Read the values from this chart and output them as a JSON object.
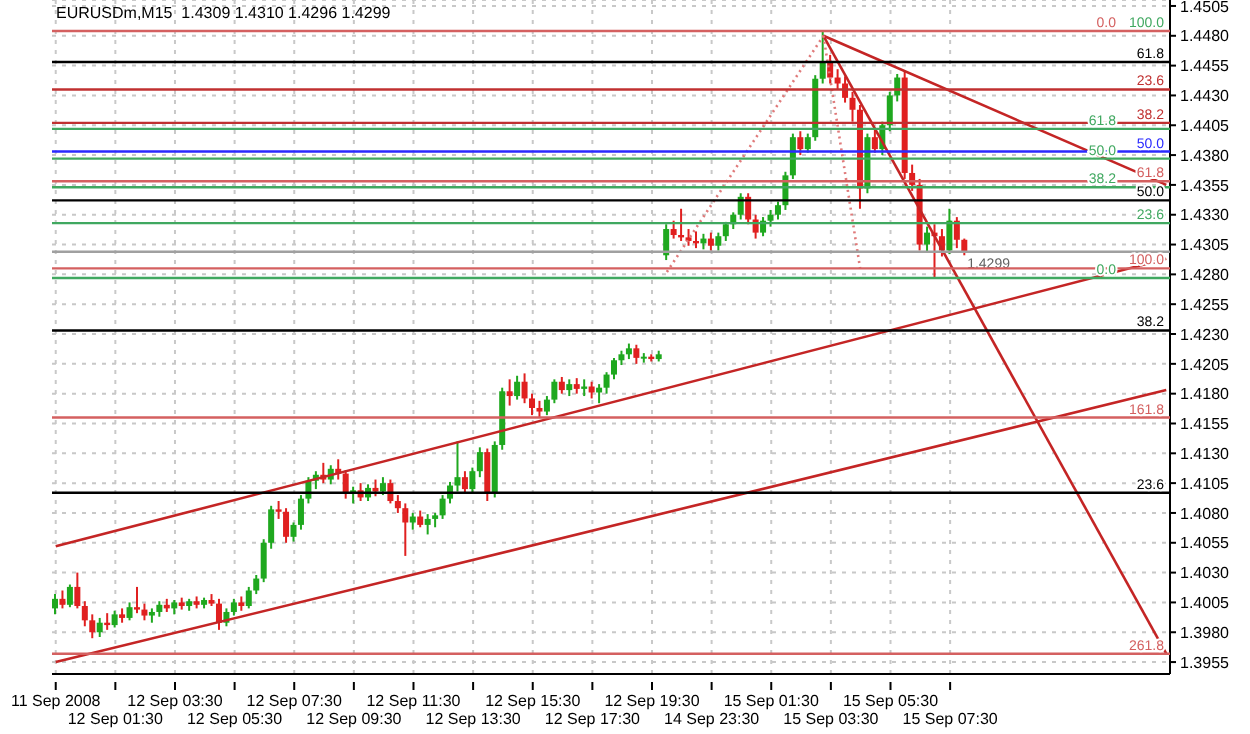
{
  "chart_data": {
    "type": "candlestick",
    "title": "EURUSDm,M15  1.4309 1.4310 1.4296 1.4299",
    "categories": [
      "11 Sep 2008",
      null,
      null,
      null,
      null,
      null,
      null,
      null,
      "12 Sep 01:30",
      null,
      null,
      null,
      null,
      null,
      null,
      null,
      "12 Sep 03:30",
      null,
      null,
      null,
      null,
      null,
      null,
      null,
      "12 Sep 05:30",
      null,
      null,
      null,
      null,
      null,
      null,
      null,
      "12 Sep 07:30",
      null,
      null,
      null,
      null,
      null,
      null,
      null,
      "12 Sep 09:30",
      null,
      null,
      null,
      null,
      null,
      null,
      null,
      "12 Sep 11:30",
      null,
      null,
      null,
      null,
      null,
      null,
      null,
      "12 Sep 13:30",
      null,
      null,
      null,
      null,
      null,
      null,
      null,
      "12 Sep 15:30",
      null,
      null,
      null,
      null,
      null,
      null,
      null,
      "12 Sep 17:30",
      null,
      null,
      null,
      null,
      null,
      null,
      null,
      "12 Sep 19:30",
      null,
      null,
      null,
      null,
      null,
      null,
      null,
      "14 Sep 23:30",
      null,
      null,
      null,
      null,
      null,
      null,
      null,
      "15 Sep 01:30",
      null,
      null,
      null,
      null,
      null,
      null,
      null,
      "15 Sep 03:30",
      null,
      null,
      null,
      null,
      null,
      null,
      null,
      "15 Sep 05:30",
      null,
      null,
      null,
      null,
      null,
      null,
      null,
      "15 Sep 07:30",
      null,
      null,
      null,
      null,
      null,
      null,
      null,
      null,
      null,
      null,
      null,
      null,
      null,
      null,
      null,
      null,
      null,
      null,
      null,
      null,
      null,
      null,
      null,
      null,
      null,
      null,
      null,
      null,
      null
    ],
    "ohlc": [
      [
        1.4,
        1.4012,
        1.3995,
        1.4008
      ],
      [
        1.4008,
        1.4015,
        1.4,
        1.4003
      ],
      [
        1.4003,
        1.402,
        1.4001,
        1.4018
      ],
      [
        1.4018,
        1.403,
        1.4,
        1.4002
      ],
      [
        1.4002,
        1.4006,
        1.3985,
        1.399
      ],
      [
        1.399,
        1.3995,
        1.3975,
        1.398
      ],
      [
        1.398,
        1.3992,
        1.3976,
        1.3988
      ],
      [
        1.3988,
        1.3996,
        1.3982,
        1.3986
      ],
      [
        1.3986,
        1.3998,
        1.3984,
        1.3995
      ],
      [
        1.3995,
        1.4,
        1.3988,
        1.3992
      ],
      [
        1.3992,
        1.4005,
        1.399,
        1.4001
      ],
      [
        1.4001,
        1.4018,
        1.3996,
        1.3999
      ],
      [
        1.3999,
        1.4004,
        1.399,
        1.3994
      ],
      [
        1.3994,
        1.4,
        1.3988,
        1.3997
      ],
      [
        1.3997,
        1.4006,
        1.3993,
        1.4003
      ],
      [
        1.4003,
        1.4008,
        1.3997,
        1.4
      ],
      [
        1.4,
        1.4007,
        1.3995,
        1.4005
      ],
      [
        1.4005,
        1.4009,
        1.3999,
        1.4002
      ],
      [
        1.4002,
        1.4008,
        1.3998,
        1.4006
      ],
      [
        1.4006,
        1.401,
        1.4,
        1.4003
      ],
      [
        1.4003,
        1.4009,
        1.4,
        1.4007
      ],
      [
        1.4007,
        1.4012,
        1.4002,
        1.4004
      ],
      [
        1.4004,
        1.4008,
        1.3982,
        1.3988
      ],
      [
        1.3988,
        1.4,
        1.3985,
        1.3997
      ],
      [
        1.3997,
        1.4008,
        1.3994,
        1.4005
      ],
      [
        1.4005,
        1.401,
        1.3998,
        1.4002
      ],
      [
        1.4002,
        1.4018,
        1.4,
        1.4015
      ],
      [
        1.4015,
        1.4028,
        1.4012,
        1.4025
      ],
      [
        1.4025,
        1.4058,
        1.4022,
        1.4055
      ],
      [
        1.4055,
        1.4086,
        1.405,
        1.4083
      ],
      [
        1.4083,
        1.409,
        1.4075,
        1.4081
      ],
      [
        1.4081,
        1.4084,
        1.4055,
        1.406
      ],
      [
        1.406,
        1.4072,
        1.4056,
        1.407
      ],
      [
        1.407,
        1.4095,
        1.4066,
        1.4092
      ],
      [
        1.4092,
        1.411,
        1.4088,
        1.4107
      ],
      [
        1.4107,
        1.4115,
        1.41,
        1.4112
      ],
      [
        1.4112,
        1.4122,
        1.4105,
        1.4108
      ],
      [
        1.4108,
        1.412,
        1.4104,
        1.4117
      ],
      [
        1.4117,
        1.4125,
        1.4108,
        1.4113
      ],
      [
        1.4113,
        1.4116,
        1.4092,
        1.4096
      ],
      [
        1.4096,
        1.4102,
        1.4088,
        1.4099
      ],
      [
        1.4099,
        1.4105,
        1.409,
        1.4093
      ],
      [
        1.4093,
        1.4104,
        1.409,
        1.4101
      ],
      [
        1.4101,
        1.4108,
        1.4094,
        1.4098
      ],
      [
        1.4098,
        1.411,
        1.4095,
        1.4105
      ],
      [
        1.4105,
        1.4108,
        1.4088,
        1.409
      ],
      [
        1.409,
        1.4095,
        1.408,
        1.4084
      ],
      [
        1.4084,
        1.4088,
        1.4044,
        1.4072
      ],
      [
        1.4072,
        1.408,
        1.4066,
        1.4077
      ],
      [
        1.4077,
        1.4082,
        1.4068,
        1.407
      ],
      [
        1.407,
        1.4079,
        1.4062,
        1.4075
      ],
      [
        1.4075,
        1.408,
        1.4068,
        1.4078
      ],
      [
        1.4078,
        1.4095,
        1.4075,
        1.4092
      ],
      [
        1.4092,
        1.4106,
        1.4088,
        1.4103
      ],
      [
        1.4103,
        1.414,
        1.4098,
        1.411
      ],
      [
        1.411,
        1.4115,
        1.4096,
        1.41
      ],
      [
        1.41,
        1.4118,
        1.4097,
        1.4115
      ],
      [
        1.4115,
        1.4135,
        1.411,
        1.4131
      ],
      [
        1.4131,
        1.4134,
        1.409,
        1.4096
      ],
      [
        1.4096,
        1.414,
        1.4093,
        1.4137
      ],
      [
        1.4137,
        1.4185,
        1.4133,
        1.4182
      ],
      [
        1.4182,
        1.4192,
        1.417,
        1.4178
      ],
      [
        1.4178,
        1.4195,
        1.4175,
        1.419
      ],
      [
        1.419,
        1.4197,
        1.4172,
        1.4176
      ],
      [
        1.4176,
        1.418,
        1.4162,
        1.4168
      ],
      [
        1.4168,
        1.4174,
        1.416,
        1.4165
      ],
      [
        1.4165,
        1.4178,
        1.4162,
        1.4175
      ],
      [
        1.4175,
        1.4192,
        1.4172,
        1.419
      ],
      [
        1.419,
        1.4194,
        1.418,
        1.4183
      ],
      [
        1.4183,
        1.4192,
        1.4178,
        1.4188
      ],
      [
        1.4188,
        1.4193,
        1.418,
        1.4184
      ],
      [
        1.4184,
        1.4192,
        1.4178,
        1.4186
      ],
      [
        1.4186,
        1.419,
        1.4176,
        1.4181
      ],
      [
        1.4181,
        1.4188,
        1.4172,
        1.4185
      ],
      [
        1.4185,
        1.4198,
        1.418,
        1.4196
      ],
      [
        1.4196,
        1.421,
        1.4192,
        1.4208
      ],
      [
        1.4208,
        1.4216,
        1.4204,
        1.4213
      ],
      [
        1.4213,
        1.4222,
        1.4209,
        1.4218
      ],
      [
        1.4218,
        1.4221,
        1.4205,
        1.421
      ],
      [
        1.421,
        1.4214,
        1.4206,
        1.4211
      ],
      [
        1.4211,
        1.4213,
        1.4207,
        1.4209
      ],
      [
        1.4209,
        1.4216,
        1.4207,
        1.4213
      ],
      [
        1.4296,
        1.4322,
        1.4292,
        1.4318
      ],
      [
        1.4318,
        1.4325,
        1.431,
        1.4313
      ],
      [
        1.4313,
        1.4335,
        1.4308,
        1.4311
      ],
      [
        1.4311,
        1.4318,
        1.4304,
        1.4308
      ],
      [
        1.4308,
        1.4316,
        1.4302,
        1.4306
      ],
      [
        1.4306,
        1.4314,
        1.4301,
        1.431
      ],
      [
        1.431,
        1.4315,
        1.43,
        1.4304
      ],
      [
        1.4304,
        1.4315,
        1.43,
        1.4312
      ],
      [
        1.4312,
        1.4324,
        1.4308,
        1.4322
      ],
      [
        1.4322,
        1.4332,
        1.4318,
        1.433
      ],
      [
        1.433,
        1.4348,
        1.4326,
        1.4345
      ],
      [
        1.4345,
        1.4348,
        1.4322,
        1.4326
      ],
      [
        1.4326,
        1.433,
        1.431,
        1.4315
      ],
      [
        1.4315,
        1.4328,
        1.4312,
        1.4325
      ],
      [
        1.4325,
        1.4334,
        1.432,
        1.433
      ],
      [
        1.433,
        1.4341,
        1.4326,
        1.4338
      ],
      [
        1.4338,
        1.4366,
        1.4334,
        1.4363
      ],
      [
        1.4363,
        1.4398,
        1.436,
        1.4395
      ],
      [
        1.4395,
        1.44,
        1.438,
        1.4385
      ],
      [
        1.4385,
        1.4398,
        1.4382,
        1.4395
      ],
      [
        1.4395,
        1.4447,
        1.4392,
        1.4444
      ],
      [
        1.4444,
        1.4484,
        1.444,
        1.4458
      ],
      [
        1.4458,
        1.4464,
        1.444,
        1.4445
      ],
      [
        1.4445,
        1.4452,
        1.4435,
        1.444
      ],
      [
        1.444,
        1.4446,
        1.4424,
        1.4428
      ],
      [
        1.4428,
        1.4433,
        1.4408,
        1.4418
      ],
      [
        1.4418,
        1.4422,
        1.4335,
        1.4352
      ],
      [
        1.4352,
        1.4398,
        1.4348,
        1.4395
      ],
      [
        1.4395,
        1.4402,
        1.4382,
        1.4385
      ],
      [
        1.4385,
        1.4408,
        1.438,
        1.4405
      ],
      [
        1.4405,
        1.4433,
        1.44,
        1.443
      ],
      [
        1.443,
        1.4448,
        1.4425,
        1.4445
      ],
      [
        1.4445,
        1.445,
        1.436,
        1.4365
      ],
      [
        1.4365,
        1.4372,
        1.435,
        1.4355
      ],
      [
        1.4355,
        1.436,
        1.43,
        1.4305
      ],
      [
        1.4305,
        1.432,
        1.4298,
        1.4315
      ],
      [
        1.4315,
        1.4322,
        1.4277,
        1.4312
      ],
      [
        1.4312,
        1.4318,
        1.4295,
        1.43
      ],
      [
        1.43,
        1.4335,
        1.4297,
        1.4325
      ],
      [
        1.4325,
        1.4328,
        1.4302,
        1.4309
      ],
      [
        1.4309,
        1.431,
        1.4296,
        1.4299
      ],
      null,
      null,
      null,
      null,
      null,
      null,
      null,
      null,
      null,
      null,
      null,
      null,
      null,
      null,
      null,
      null,
      null,
      null,
      null,
      null,
      null,
      null,
      null,
      null,
      null,
      null,
      null
    ],
    "colors": [
      "#1fa81f",
      "#e02020",
      "#1fa81f",
      "#e02020",
      "#e02020",
      "#e02020",
      "#1fa81f",
      "#e02020",
      "#1fa81f",
      "#e02020",
      "#1fa81f",
      "#e02020",
      "#e02020",
      "#1fa81f",
      "#1fa81f",
      "#e02020",
      "#1fa81f",
      "#e02020",
      "#1fa81f",
      "#e02020",
      "#1fa81f",
      "#e02020",
      "#e02020",
      "#1fa81f",
      "#1fa81f",
      "#e02020",
      "#1fa81f",
      "#1fa81f",
      "#1fa81f",
      "#1fa81f",
      "#e02020",
      "#e02020",
      "#1fa81f",
      "#1fa81f",
      "#1fa81f",
      "#1fa81f",
      "#e02020",
      "#1fa81f",
      "#e02020",
      "#e02020",
      "#1fa81f",
      "#e02020",
      "#1fa81f",
      "#e02020",
      "#1fa81f",
      "#e02020",
      "#e02020",
      "#e02020",
      "#1fa81f",
      "#e02020",
      "#1fa81f",
      "#1fa81f",
      "#1fa81f",
      "#1fa81f",
      "#1fa81f",
      "#e02020",
      "#1fa81f",
      "#1fa81f",
      "#e02020",
      "#1fa81f",
      "#1fa81f",
      "#e02020",
      "#1fa81f",
      "#e02020",
      "#e02020",
      "#e02020",
      "#1fa81f",
      "#1fa81f",
      "#e02020",
      "#1fa81f",
      "#e02020",
      "#1fa81f",
      "#e02020",
      "#1fa81f",
      "#1fa81f",
      "#1fa81f",
      "#1fa81f",
      "#1fa81f",
      "#e02020",
      "#1fa81f",
      "#e02020",
      "#1fa81f",
      "#1fa81f",
      "#e02020",
      "#e02020",
      "#e02020",
      "#e02020",
      "#1fa81f",
      "#e02020",
      "#1fa81f",
      "#1fa81f",
      "#1fa81f",
      "#1fa81f",
      "#e02020",
      "#e02020",
      "#1fa81f",
      "#1fa81f",
      "#1fa81f",
      "#1fa81f",
      "#1fa81f",
      "#e02020",
      "#1fa81f",
      "#1fa81f",
      "#1fa81f",
      "#e02020",
      "#e02020",
      "#e02020",
      "#e02020",
      "#e02020",
      "#1fa81f",
      "#e02020",
      "#1fa81f",
      "#1fa81f",
      "#1fa81f",
      "#e02020",
      "#e02020",
      "#e02020",
      "#1fa81f",
      "#e02020",
      "#e02020",
      "#1fa81f",
      "#e02020",
      "#e02020",
      null,
      null,
      null,
      null,
      null,
      null,
      null,
      null,
      null,
      null,
      null,
      null,
      null,
      null,
      null,
      null,
      null,
      null,
      null,
      null,
      null,
      null,
      null,
      null,
      null,
      null,
      null
    ],
    "series": [
      {
        "type": "line",
        "color": "#c42525",
        "values": [
          1.3955,
          null,
          null,
          null,
          null,
          null,
          null,
          null,
          null,
          null,
          null,
          null,
          null,
          null,
          null,
          null,
          null,
          null,
          null,
          null,
          null,
          null,
          null,
          null,
          null,
          null,
          null,
          null,
          null,
          null,
          null,
          null,
          null,
          null,
          null,
          null,
          null,
          null,
          null,
          null,
          null,
          null,
          null,
          null,
          null,
          null,
          null,
          null,
          null,
          null,
          null,
          null,
          null,
          null,
          null,
          null,
          null,
          null,
          null,
          null,
          null,
          null,
          null,
          null,
          null,
          null,
          null,
          null,
          null,
          null,
          null,
          null,
          null,
          null,
          null,
          null,
          null,
          null,
          null,
          null,
          null,
          null,
          null,
          null,
          null,
          null,
          null,
          null,
          null,
          null,
          null,
          null,
          null,
          null,
          null,
          null,
          null,
          null,
          null,
          null,
          null,
          null,
          null,
          null,
          null,
          null,
          null,
          null,
          null,
          null,
          null,
          null,
          null,
          null,
          null,
          null,
          null,
          null,
          null,
          null,
          null,
          null,
          null,
          null,
          null,
          null,
          null,
          null,
          null,
          null,
          null,
          null,
          null,
          null,
          null,
          null,
          null,
          null,
          null,
          null,
          null,
          null,
          null,
          null,
          null,
          null,
          null,
          null,
          null,
          1.4183
        ]
      },
      {
        "type": "line",
        "color": "#c42525",
        "values": [
          1.4052,
          null,
          null,
          null,
          null,
          null,
          null,
          null,
          null,
          null,
          null,
          null,
          null,
          null,
          null,
          null,
          null,
          null,
          null,
          null,
          null,
          null,
          null,
          null,
          null,
          null,
          null,
          null,
          null,
          null,
          null,
          null,
          null,
          null,
          null,
          null,
          null,
          null,
          null,
          null,
          null,
          null,
          null,
          null,
          null,
          null,
          null,
          null,
          null,
          null,
          null,
          null,
          null,
          null,
          null,
          null,
          null,
          null,
          null,
          null,
          null,
          null,
          null,
          null,
          null,
          null,
          null,
          null,
          null,
          null,
          null,
          null,
          null,
          null,
          null,
          null,
          null,
          null,
          null,
          null,
          null,
          null,
          null,
          null,
          null,
          null,
          null,
          null,
          null,
          null,
          null,
          null,
          null,
          null,
          null,
          null,
          null,
          null,
          null,
          null,
          null,
          null,
          null,
          null,
          null,
          null,
          null,
          null,
          null,
          null,
          null,
          null,
          null,
          null,
          null,
          null,
          null,
          null,
          null,
          null,
          null,
          null,
          null,
          null,
          null,
          null,
          null,
          null,
          null,
          null,
          null,
          null,
          null,
          null,
          null,
          null,
          null,
          null,
          null,
          null,
          null,
          null,
          null,
          null,
          null,
          null,
          null,
          null,
          null,
          1.4293
        ]
      },
      {
        "type": "line",
        "color": "#c42525",
        "values": [
          null,
          null,
          null,
          null,
          null,
          null,
          null,
          null,
          null,
          null,
          null,
          null,
          null,
          null,
          null,
          null,
          null,
          null,
          null,
          null,
          null,
          null,
          null,
          null,
          null,
          null,
          null,
          null,
          null,
          null,
          null,
          null,
          null,
          null,
          null,
          null,
          null,
          null,
          null,
          null,
          null,
          null,
          null,
          null,
          null,
          null,
          null,
          null,
          null,
          null,
          null,
          null,
          null,
          null,
          null,
          null,
          null,
          null,
          null,
          null,
          null,
          null,
          null,
          null,
          null,
          null,
          null,
          null,
          null,
          null,
          null,
          null,
          null,
          null,
          null,
          null,
          null,
          null,
          null,
          null,
          null,
          null,
          null,
          null,
          null,
          null,
          null,
          null,
          null,
          null,
          null,
          null,
          null,
          null,
          null,
          null,
          null,
          null,
          null,
          null,
          null,
          null,
          null,
          1.448,
          null,
          null,
          null,
          null,
          null,
          null,
          null,
          null,
          null,
          null,
          null,
          null,
          null,
          null,
          null,
          null,
          null,
          null,
          null,
          null,
          null,
          null,
          null,
          null,
          null,
          null,
          null,
          null,
          null,
          null,
          null,
          null,
          null,
          null,
          null,
          null,
          null,
          null,
          null,
          null,
          null,
          null,
          null,
          null,
          null,
          1.4355
        ]
      },
      {
        "type": "line",
        "color": "#c42525",
        "values": [
          null,
          null,
          null,
          null,
          null,
          null,
          null,
          null,
          null,
          null,
          null,
          null,
          null,
          null,
          null,
          null,
          null,
          null,
          null,
          null,
          null,
          null,
          null,
          null,
          null,
          null,
          null,
          null,
          null,
          null,
          null,
          null,
          null,
          null,
          null,
          null,
          null,
          null,
          null,
          null,
          null,
          null,
          null,
          null,
          null,
          null,
          null,
          null,
          null,
          null,
          null,
          null,
          null,
          null,
          null,
          null,
          null,
          null,
          null,
          null,
          null,
          null,
          null,
          null,
          null,
          null,
          null,
          null,
          null,
          null,
          null,
          null,
          null,
          null,
          null,
          null,
          null,
          null,
          null,
          null,
          null,
          null,
          null,
          null,
          null,
          null,
          null,
          null,
          null,
          null,
          null,
          null,
          null,
          null,
          null,
          null,
          null,
          null,
          null,
          null,
          null,
          null,
          null,
          1.448,
          null,
          null,
          null,
          null,
          null,
          null,
          null,
          null,
          null,
          null,
          null,
          null,
          null,
          null,
          null,
          null,
          null,
          null,
          null,
          null,
          null,
          null,
          null,
          null,
          null,
          null,
          null,
          null,
          null,
          null,
          null,
          null,
          null,
          null,
          null,
          null,
          null,
          null,
          null,
          null,
          null,
          null,
          null,
          null,
          null,
          1.3962
        ]
      },
      {
        "type": "line",
        "color": "#e07a7a",
        "line_style": "dotted",
        "values": [
          null,
          null,
          null,
          null,
          null,
          null,
          null,
          null,
          null,
          null,
          null,
          null,
          null,
          null,
          null,
          null,
          null,
          null,
          null,
          null,
          null,
          null,
          null,
          null,
          null,
          null,
          null,
          null,
          null,
          null,
          null,
          null,
          null,
          null,
          null,
          null,
          null,
          null,
          null,
          null,
          null,
          null,
          null,
          null,
          null,
          null,
          null,
          null,
          null,
          null,
          null,
          null,
          null,
          null,
          null,
          null,
          null,
          null,
          null,
          null,
          null,
          null,
          null,
          null,
          null,
          null,
          null,
          null,
          null,
          null,
          null,
          null,
          null,
          null,
          null,
          null,
          null,
          null,
          null,
          null,
          null,
          null,
          1.4282,
          null,
          null,
          null,
          null,
          null,
          null,
          null,
          null,
          null,
          null,
          null,
          null,
          null,
          null,
          null,
          null,
          null,
          null,
          null,
          null,
          1.448,
          null,
          null,
          null,
          null,
          null,
          null,
          null,
          null,
          null,
          null,
          null,
          null,
          null,
          null,
          null,
          null,
          null,
          null,
          null,
          null,
          null,
          null,
          null,
          null,
          null,
          null,
          null,
          null,
          null,
          null,
          null,
          null,
          null,
          null,
          null,
          null,
          null,
          null,
          null,
          null,
          null,
          null,
          null,
          null,
          null,
          null
        ]
      },
      {
        "type": "line",
        "color": "#e07a7a",
        "line_style": "dotted",
        "values": [
          null,
          null,
          null,
          null,
          null,
          null,
          null,
          null,
          null,
          null,
          null,
          null,
          null,
          null,
          null,
          null,
          null,
          null,
          null,
          null,
          null,
          null,
          null,
          null,
          null,
          null,
          null,
          null,
          null,
          null,
          null,
          null,
          null,
          null,
          null,
          null,
          null,
          null,
          null,
          null,
          null,
          null,
          null,
          null,
          null,
          null,
          null,
          null,
          null,
          null,
          null,
          null,
          null,
          null,
          null,
          null,
          null,
          null,
          null,
          null,
          null,
          null,
          null,
          null,
          null,
          null,
          null,
          null,
          null,
          null,
          null,
          null,
          null,
          null,
          null,
          null,
          null,
          null,
          null,
          null,
          null,
          null,
          null,
          null,
          null,
          null,
          null,
          null,
          null,
          null,
          null,
          null,
          null,
          null,
          null,
          null,
          null,
          null,
          null,
          null,
          null,
          null,
          null,
          1.448,
          null,
          null,
          null,
          null,
          1.4282,
          null,
          null,
          null,
          null,
          null,
          null,
          null,
          null,
          null,
          null,
          null,
          null,
          null,
          null,
          null,
          null,
          null,
          null,
          null,
          null,
          null,
          null,
          null,
          null,
          null,
          null,
          null,
          null,
          null,
          null,
          null,
          null,
          null,
          null,
          null,
          null,
          null,
          null,
          null,
          null,
          null
        ]
      }
    ],
    "ylim": [
      1.3945,
      1.451
    ],
    "yticks": [
      1.4505,
      {
        "value": 1.448,
        "label": "1.4480"
      },
      1.4455,
      {
        "value": 1.443,
        "label": "1.4430"
      },
      1.4405,
      {
        "value": 1.438,
        "label": "1.4380"
      },
      1.4355,
      {
        "value": 1.433,
        "label": "1.4330"
      },
      1.4305,
      {
        "value": 1.428,
        "label": "1.4280"
      },
      1.4255,
      {
        "value": 1.423,
        "label": "1.4230"
      },
      1.4205,
      {
        "value": 1.418,
        "label": "1.4180"
      },
      1.4155,
      {
        "value": 1.413,
        "label": "1.4130"
      },
      1.4105,
      {
        "value": 1.408,
        "label": "1.4080"
      },
      1.4055,
      {
        "value": 1.403,
        "label": "1.4030"
      },
      1.4005,
      {
        "value": 1.398,
        "label": "1.3980"
      },
      1.3955
    ],
    "ref_lines": [
      {
        "axis": "y",
        "value": 1.4484,
        "color": "#d46060"
      },
      {
        "axis": "y",
        "value": 1.4458,
        "color": "#000000"
      },
      {
        "axis": "y",
        "value": 1.4435,
        "color": "#c03030"
      },
      {
        "axis": "y",
        "value": 1.4407,
        "color": "#c03030"
      },
      {
        "axis": "y",
        "value": 1.4402,
        "color": "#40a860"
      },
      {
        "axis": "y",
        "value": 1.4383,
        "color": "#2a2aff"
      },
      {
        "axis": "y",
        "value": 1.4377,
        "color": "#40a860"
      },
      {
        "axis": "y",
        "value": 1.4358,
        "color": "#d46060"
      },
      {
        "axis": "y",
        "value": 1.4353,
        "color": "#40a860"
      },
      {
        "axis": "y",
        "value": 1.4342,
        "color": "#000000"
      },
      {
        "axis": "y",
        "value": 1.4323,
        "color": "#40a860"
      },
      {
        "axis": "y",
        "value": 1.4299,
        "label": "1.4299",
        "color": "#a0a0a0"
      },
      {
        "axis": "y",
        "value": 1.4285,
        "color": "#d46060"
      },
      {
        "axis": "y",
        "value": 1.4277,
        "color": "#40a860"
      },
      {
        "axis": "y",
        "value": 1.4233,
        "color": "#000000"
      },
      {
        "axis": "y",
        "value": 1.416,
        "color": "#d46060"
      },
      {
        "axis": "y",
        "value": 1.4097,
        "color": "#000000"
      },
      {
        "axis": "y",
        "value": 1.3962,
        "color": "#d46060"
      }
    ],
    "annotations": [
      {
        "text": "100.0",
        "y": 1.4484
      },
      {
        "text": "0.0",
        "y": 1.4484
      },
      {
        "text": "61.8",
        "y": 1.4458
      },
      {
        "text": "23.6",
        "y": 1.4435
      },
      {
        "text": "38.2",
        "y": 1.4407
      },
      {
        "text": "61.8",
        "y": 1.4402
      },
      {
        "text": "50.0",
        "y": 1.4383
      },
      {
        "text": "50.0",
        "y": 1.4377
      },
      {
        "text": "61.8",
        "y": 1.4358
      },
      {
        "text": "38.2",
        "y": 1.4353
      },
      {
        "text": "50.0",
        "y": 1.4342
      },
      {
        "text": "23.6",
        "y": 1.4323
      },
      {
        "text": "100.0",
        "y": 1.4285
      },
      {
        "text": "0.0",
        "y": 1.4277
      },
      {
        "text": "38.2",
        "y": 1.4233
      },
      {
        "text": "161.8",
        "y": 1.416
      },
      {
        "text": "23.6",
        "y": 1.4097
      },
      {
        "text": "261.8",
        "y": 1.3962
      }
    ],
    "grid": true
  }
}
